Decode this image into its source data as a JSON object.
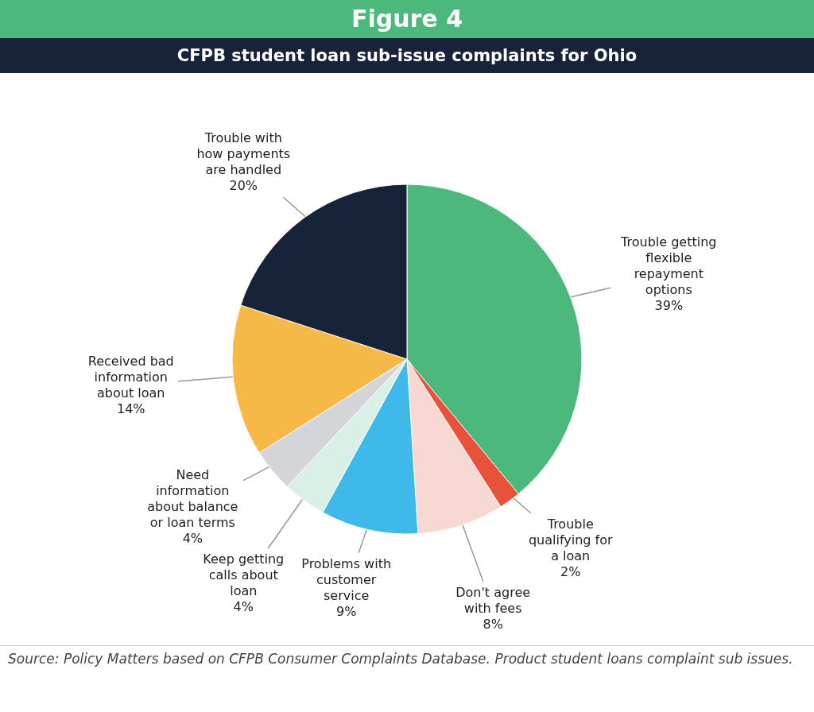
{
  "chart_data": {
    "type": "pie",
    "title": "Figure 4",
    "subtitle": "CFPB student loan sub-issue complaints for Ohio",
    "categories": [
      "Trouble getting flexible repayment options",
      "Trouble qualifying for a loan",
      "Don't agree with fees",
      "Problems with customer service",
      "Keep getting calls about loan",
      "Need information about balance or loan terms",
      "Received bad information about loan",
      "Trouble with how payments are handled"
    ],
    "values": [
      39,
      2,
      8,
      9,
      4,
      4,
      14,
      20
    ],
    "value_labels": [
      "39%",
      "2%",
      "8%",
      "9%",
      "4%",
      "4%",
      "14%",
      "20%"
    ],
    "colors": [
      "#4db87b",
      "#e8513a",
      "#f7d8d2",
      "#3fb8ea",
      "#d9f0e6",
      "#d3d5d9",
      "#f6b846",
      "#172338"
    ],
    "annotations": [
      "Source: Policy Matters based on CFPB Consumer Complaints Database. Product student loans complaint sub issues."
    ]
  }
}
